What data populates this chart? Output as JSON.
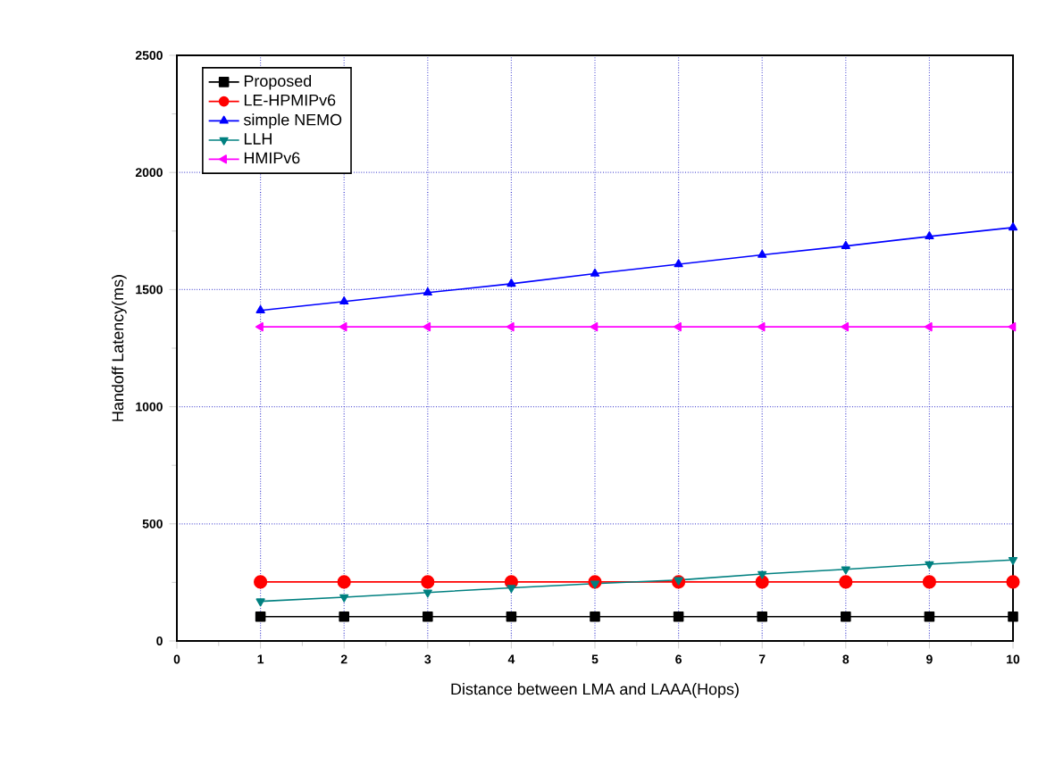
{
  "chart_data": {
    "type": "line",
    "xlabel": "Distance between LMA  and LAAA(Hops)",
    "ylabel": "Handoff Latency(ms)",
    "x": [
      1,
      2,
      3,
      4,
      5,
      6,
      7,
      8,
      9,
      10
    ],
    "series": [
      {
        "name": "Proposed",
        "color": "#000000",
        "marker": "square",
        "values": [
          104,
          104,
          104,
          104,
          104,
          104,
          104,
          104,
          104,
          104
        ]
      },
      {
        "name": "LE-HPMIPv6",
        "color": "#ff0000",
        "marker": "circle",
        "values": [
          252,
          252,
          252,
          252,
          252,
          252,
          252,
          252,
          252,
          252
        ]
      },
      {
        "name": "simple NEMO",
        "color": "#0000ff",
        "marker": "triangle",
        "values": [
          1411,
          1449,
          1487,
          1525,
          1568,
          1608,
          1648,
          1686,
          1727,
          1765
        ]
      },
      {
        "name": "LLH",
        "color": "#008080",
        "marker": "triangle-down",
        "values": [
          169,
          187,
          207,
          227,
          245,
          260,
          286,
          306,
          328,
          346
        ]
      },
      {
        "name": "HMIPv6",
        "color": "#ff00ff",
        "marker": "triangle-left",
        "values": [
          1341,
          1341,
          1341,
          1341,
          1341,
          1341,
          1341,
          1341,
          1341,
          1341
        ]
      }
    ],
    "xlim": [
      0,
      10
    ],
    "ylim": [
      0,
      2500
    ],
    "xticks": [
      0,
      1,
      2,
      3,
      4,
      5,
      6,
      7,
      8,
      9,
      10
    ],
    "yticks": [
      0,
      500,
      1000,
      1500,
      2000,
      2500
    ],
    "grid": true,
    "legend": "top left",
    "line_style": "solid"
  }
}
